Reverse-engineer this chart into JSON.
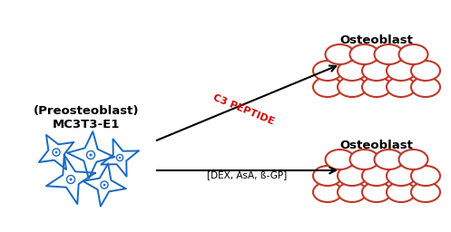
{
  "bg_color": "#ffffff",
  "cell_color": "#1a6abf",
  "osteoblast_color": "#c0392b",
  "arrow_color": "#000000",
  "c3_label_color": "#cc0000",
  "label_mc3t3_line1": "MC3T3-E1",
  "label_mc3t3_line2": "(Preosteoblast)",
  "label_osteoblast": "Osteoblast",
  "label_dex": "[DEX, AsA, ß-GP]",
  "label_c3": "C3 PEPTIDE",
  "figsize": [
    4.97,
    2.56
  ],
  "dpi": 100
}
